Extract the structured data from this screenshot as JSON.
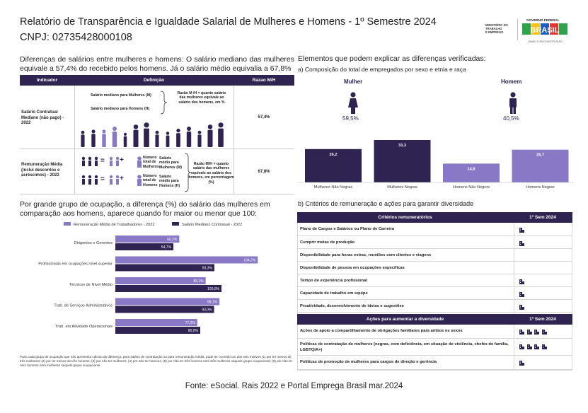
{
  "title": "Relatório de Transparência e Igualdade Salarial de Mulheres e Homens - 1º Semestre 2024",
  "cnpj": "CNPJ: 02735428000108",
  "logos": {
    "ministry": [
      "MINISTÉRIO DO",
      "TRABALHO",
      "E EMPREGO"
    ],
    "gov_top": "GOVERNO FEDERAL",
    "gov_brand": "BRASIL",
    "gov_bottom": "UNIÃO E RECONSTRUÇÃO"
  },
  "left_top": {
    "intro": "Diferenças de salários entre mulheres e homens: O salário mediano das mulheres equivale a 57,4% do recebido pelos homens. Já o salário médio equivalia a 67,8%",
    "headers": [
      "Indicador",
      "Definição",
      "Razao M/H"
    ],
    "row1": {
      "indicator": "Salário Contratual Mediano (não pago) - 2022",
      "def_a": "Salário mediano para Mulheres (M)",
      "def_b": "Salário mediano para Homens (H)",
      "def_note": "Razão M /H = quanto salário das mulheres equivale ao salário dos homens, em %",
      "ratio": "57,4%"
    },
    "row2": {
      "indicator": "Remuneração Média (inclui descontos e acréscimos) - 2022",
      "def_a1": "Número total de Mulheres",
      "def_a2": "Salário médio para Mulheres (M)",
      "def_b1": "Número total de Homens",
      "def_b2": "Salário médio para Homens (H)",
      "def_note": "Razão M/H = quanto salário das mulheres equivale ao salário dos homens, em porcentagem (%)",
      "ratio": "67,8%",
      "equals": "=",
      "plus": "+"
    }
  },
  "left_chart": {
    "intro": "Por grande grupo de ocupação, a diferença (%) do salário das mulheres em comparação aos homens, aparece quando for maior ou menor que 100:",
    "footnote": "Para cada grupo de ocupação que não apresenta cálculo da diferença, para salário de contratação ou para remuneração média, pode ter ocorrido um dos seis motivos (1) por ter menos de três mulheres; (2) por ter menos de três homens; (3) por não ter mulheres; (4) por não ter homens; (5) por não ter três homens nem três mulheres naquele grupo ocupacional; (6) por não ter nem homens nem mulheres naquele grupo ocupacional.",
    "colors": {
      "remuneracao": "#8878c6",
      "salario": "#2e2351"
    }
  },
  "chart_data": [
    {
      "type": "bar",
      "orientation": "horizontal",
      "categories": [
        "Dirigentes e Gerentes",
        "Profissionais em ocupações nível superior",
        "Técnicos de Nível Médio",
        "Trab. de Serviços Administrativos",
        "Trab. em Atividade Operacionais"
      ],
      "series": [
        {
          "name": "Remuneração Média de Trabalhadores - 2022",
          "values": [
            60.2,
            134.2,
            85.1,
            98.1,
            77.2
          ],
          "labels": [
            "60,2%",
            "134,2%",
            "85,1%",
            "98,1%",
            "77,2%"
          ]
        },
        {
          "name": "Salário Mediano Contratual - 2022",
          "values": [
            54.7,
            93.3,
            100.0,
            93.0,
            80.0
          ],
          "labels": [
            "54,7%",
            "93,3%",
            "100,0%",
            "93,0%",
            "80,0%"
          ]
        }
      ],
      "legend": "top",
      "xlim": [
        0,
        140
      ]
    },
    {
      "type": "bar",
      "title": "a) Composição do total de empregados por sexo e etnia e raça",
      "categories": [
        "Mulheres Não Negras",
        "Mulheres Negras",
        "Homens Não Negros",
        "Homens Negras"
      ],
      "values": [
        26.2,
        33.3,
        14.8,
        25.7
      ],
      "labels": [
        "26,2",
        "33,3",
        "14,8",
        "25,7"
      ],
      "colors": [
        "#2e2351",
        "#2e2351",
        "#8878c6",
        "#8878c6"
      ]
    }
  ],
  "right": {
    "header": "Elementos que podem explicar as diferenças verificadas:",
    "comp_title": "a) Composição do total de empregados por sexo e etnia e raça",
    "women_label": "Mulher",
    "women_pct": "59,5%",
    "men_label": "Homem",
    "men_pct": "40,5%",
    "crit_title": "b) Critérios de remuneração e ações para garantir diversidade",
    "crit_header": [
      "Critérios remuneratórios",
      "1º Sem 2024"
    ],
    "criteria": [
      {
        "label": "Plano de Cargos e Salários ou Plano de Carreira",
        "icons": "1"
      },
      {
        "label": "Cumprir metas de produção",
        "icons": "1"
      },
      {
        "label": "Disponibilidade para horas extras, reuniões com clientes e viagens",
        "icons": "0"
      },
      {
        "label": "Disponibilidade de pessoa em ocupações específicas",
        "icons": "0"
      },
      {
        "label": "Tempo de experiência profissional",
        "icons": "1"
      },
      {
        "label": "Capacidade de trabalho em equipe",
        "icons": "1"
      },
      {
        "label": "Proatividade, desenvolvimento de ideias e sugestões",
        "icons": "1"
      }
    ],
    "div_header": [
      "Ações para aumentar a diversidade",
      "1º Sem 2024"
    ],
    "actions": [
      {
        "label": "Ações de apoio a compartilhamento de obrigações familiares para ambos os sexos",
        "icons": "4"
      },
      {
        "label": "Políticas de contratação de mulheres (negras, com deficiência, em situação de violência, chefes de família, LGBTQIA+)",
        "icons": "4"
      },
      {
        "label": "Políticas de promoção de mulheres para cargos de direção e gerência",
        "icons": "1"
      }
    ],
    "icon_name": "building-icon"
  },
  "source": "Fonte: eSocial. Rais 2022 e Portal Emprega Brasil mar.2024"
}
